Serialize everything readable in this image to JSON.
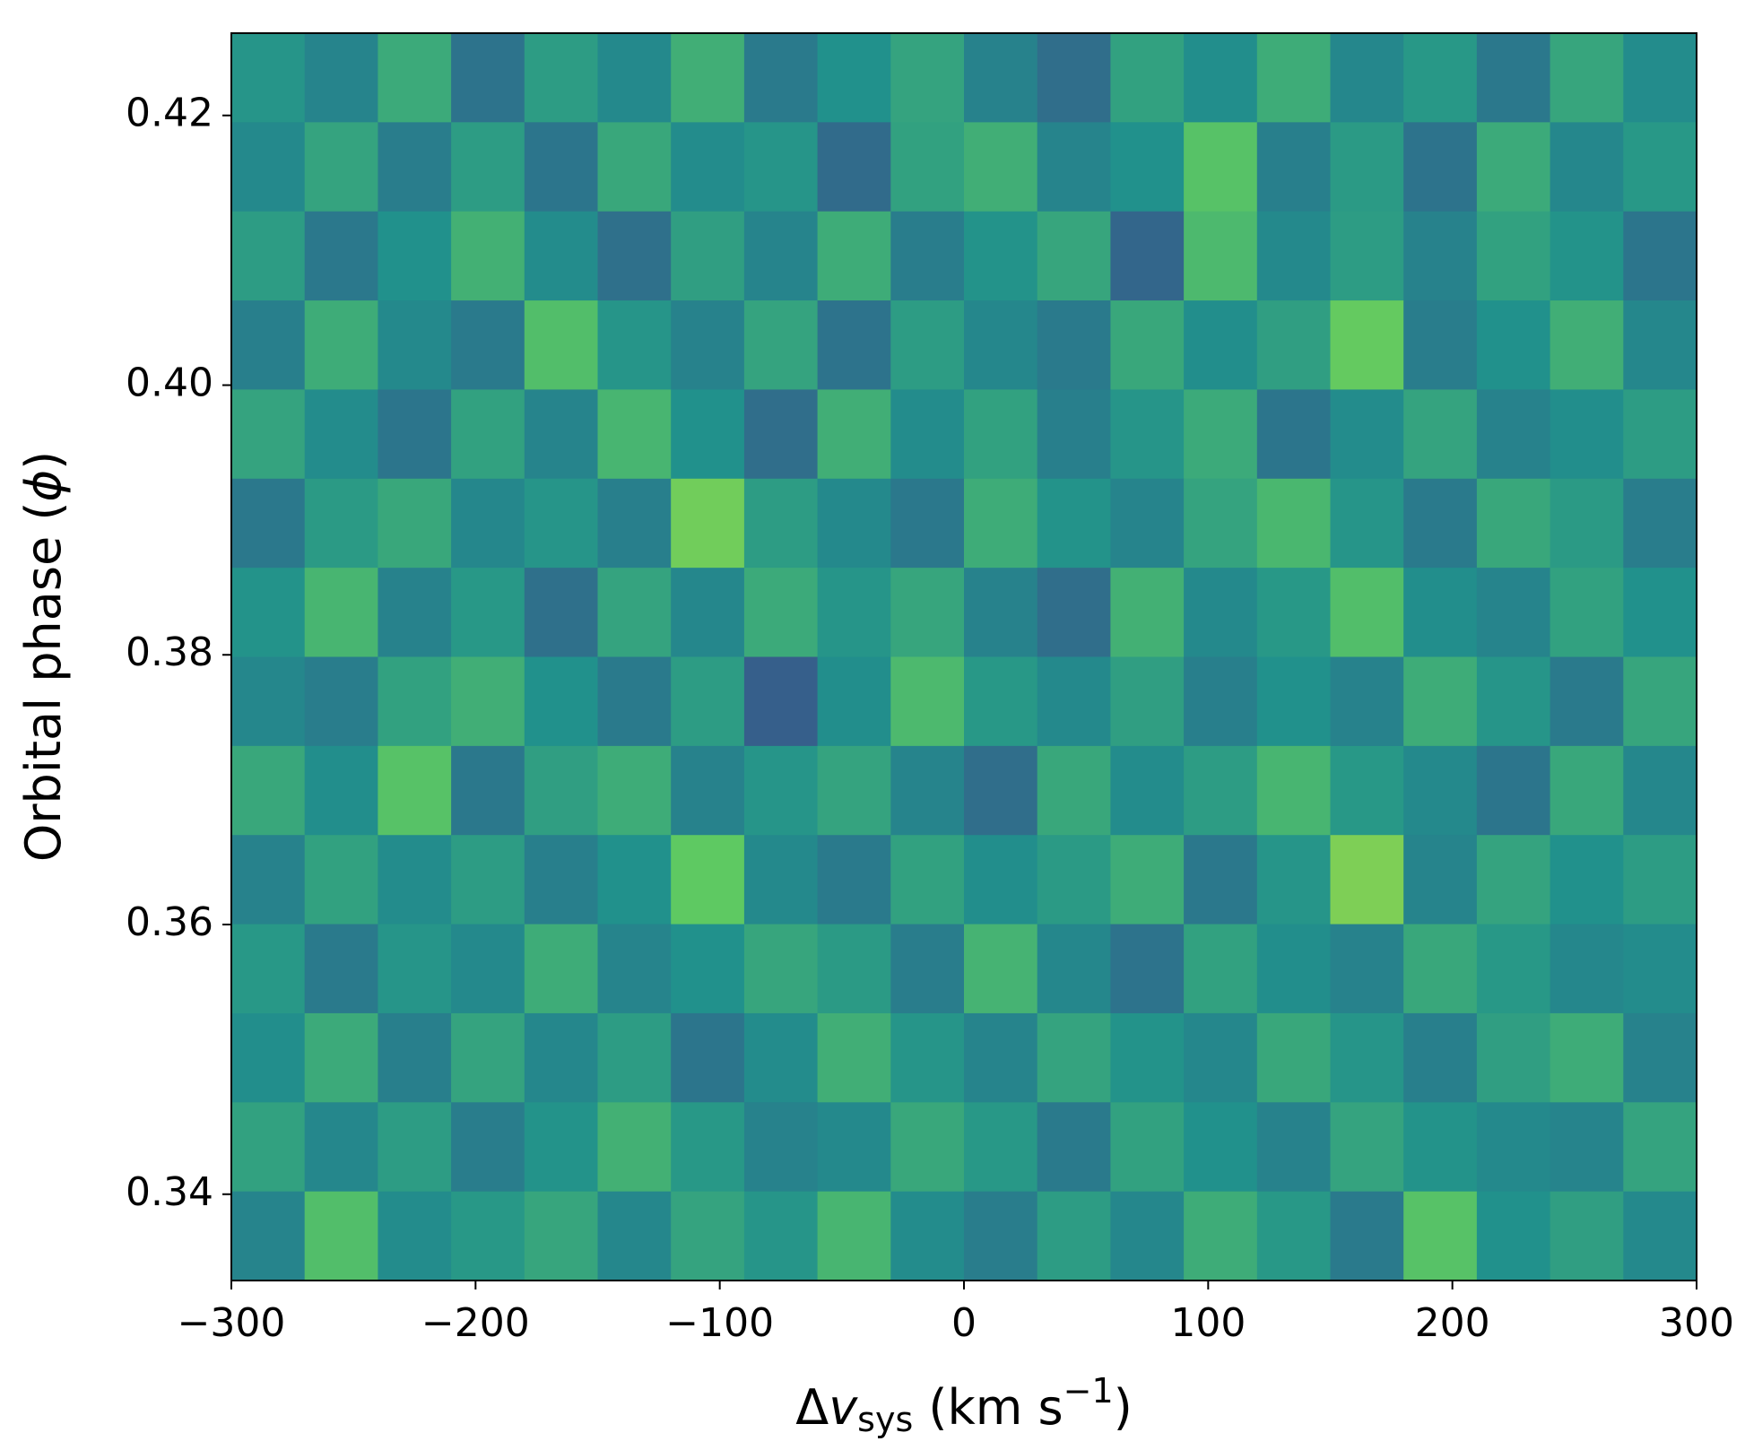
{
  "chart_data": {
    "type": "heatmap",
    "xlabel": [
      "Δ",
      "v",
      "sys",
      " (km s",
      "−1",
      ")"
    ],
    "ylabel": [
      "Orbital phase (",
      "ϕ",
      ")"
    ],
    "xlim": [
      -300,
      300
    ],
    "ylim": [
      0.3336,
      0.4261
    ],
    "xticks": [
      {
        "value": -300,
        "label": "−300"
      },
      {
        "value": -200,
        "label": "−200"
      },
      {
        "value": -100,
        "label": "−100"
      },
      0,
      100,
      200,
      300
    ],
    "yticks": [
      {
        "value": 0.34,
        "label": "0.34"
      },
      {
        "value": 0.36,
        "label": "0.36"
      },
      {
        "value": 0.38,
        "label": "0.38"
      },
      {
        "value": 0.4,
        "label": "0.40"
      },
      {
        "value": 0.42,
        "label": "0.42"
      }
    ],
    "colormap": [
      "#440154",
      "#3b528b",
      "#21918c",
      "#5ec962",
      "#fde725"
    ],
    "z": [
      [
        0.52,
        0.45,
        0.61,
        0.38,
        0.55,
        0.47,
        0.63,
        0.41,
        0.5,
        0.58,
        0.44,
        0.36,
        0.57,
        0.49,
        0.62,
        0.46,
        0.53,
        0.4,
        0.59,
        0.48
      ],
      [
        0.47,
        0.58,
        0.42,
        0.55,
        0.39,
        0.6,
        0.48,
        0.52,
        0.35,
        0.57,
        0.63,
        0.45,
        0.5,
        0.72,
        0.43,
        0.54,
        0.38,
        0.61,
        0.46,
        0.53
      ],
      [
        0.55,
        0.4,
        0.5,
        0.64,
        0.48,
        0.37,
        0.56,
        0.45,
        0.62,
        0.42,
        0.51,
        0.59,
        0.33,
        0.68,
        0.47,
        0.55,
        0.44,
        0.57,
        0.51,
        0.39
      ],
      [
        0.43,
        0.62,
        0.47,
        0.41,
        0.7,
        0.52,
        0.44,
        0.58,
        0.38,
        0.55,
        0.46,
        0.41,
        0.6,
        0.49,
        0.56,
        0.76,
        0.42,
        0.5,
        0.63,
        0.46
      ],
      [
        0.58,
        0.48,
        0.39,
        0.57,
        0.45,
        0.66,
        0.5,
        0.36,
        0.63,
        0.48,
        0.57,
        0.43,
        0.52,
        0.61,
        0.39,
        0.48,
        0.58,
        0.44,
        0.49,
        0.55
      ],
      [
        0.4,
        0.54,
        0.6,
        0.46,
        0.52,
        0.43,
        0.78,
        0.55,
        0.47,
        0.4,
        0.62,
        0.51,
        0.45,
        0.58,
        0.67,
        0.52,
        0.41,
        0.6,
        0.54,
        0.42
      ],
      [
        0.51,
        0.66,
        0.44,
        0.53,
        0.37,
        0.58,
        0.46,
        0.61,
        0.52,
        0.59,
        0.44,
        0.36,
        0.64,
        0.47,
        0.53,
        0.7,
        0.49,
        0.45,
        0.57,
        0.5
      ],
      [
        0.46,
        0.42,
        0.57,
        0.63,
        0.5,
        0.41,
        0.55,
        0.3,
        0.49,
        0.68,
        0.53,
        0.47,
        0.56,
        0.43,
        0.5,
        0.44,
        0.62,
        0.52,
        0.41,
        0.59
      ],
      [
        0.6,
        0.49,
        0.72,
        0.4,
        0.56,
        0.62,
        0.44,
        0.52,
        0.58,
        0.45,
        0.36,
        0.6,
        0.48,
        0.55,
        0.66,
        0.53,
        0.47,
        0.39,
        0.6,
        0.46
      ],
      [
        0.44,
        0.57,
        0.48,
        0.55,
        0.43,
        0.5,
        0.75,
        0.47,
        0.41,
        0.57,
        0.49,
        0.54,
        0.62,
        0.4,
        0.52,
        0.8,
        0.45,
        0.58,
        0.5,
        0.55
      ],
      [
        0.53,
        0.41,
        0.52,
        0.47,
        0.62,
        0.45,
        0.5,
        0.59,
        0.54,
        0.42,
        0.65,
        0.46,
        0.38,
        0.57,
        0.49,
        0.44,
        0.6,
        0.53,
        0.46,
        0.48
      ],
      [
        0.49,
        0.61,
        0.43,
        0.58,
        0.46,
        0.55,
        0.39,
        0.48,
        0.63,
        0.52,
        0.45,
        0.58,
        0.51,
        0.46,
        0.6,
        0.52,
        0.43,
        0.56,
        0.62,
        0.44
      ],
      [
        0.57,
        0.46,
        0.55,
        0.42,
        0.51,
        0.64,
        0.53,
        0.44,
        0.47,
        0.6,
        0.53,
        0.41,
        0.57,
        0.5,
        0.44,
        0.58,
        0.51,
        0.47,
        0.45,
        0.58
      ],
      [
        0.45,
        0.7,
        0.48,
        0.53,
        0.59,
        0.46,
        0.58,
        0.52,
        0.66,
        0.48,
        0.42,
        0.55,
        0.46,
        0.62,
        0.53,
        0.41,
        0.72,
        0.5,
        0.56,
        0.47
      ]
    ]
  }
}
